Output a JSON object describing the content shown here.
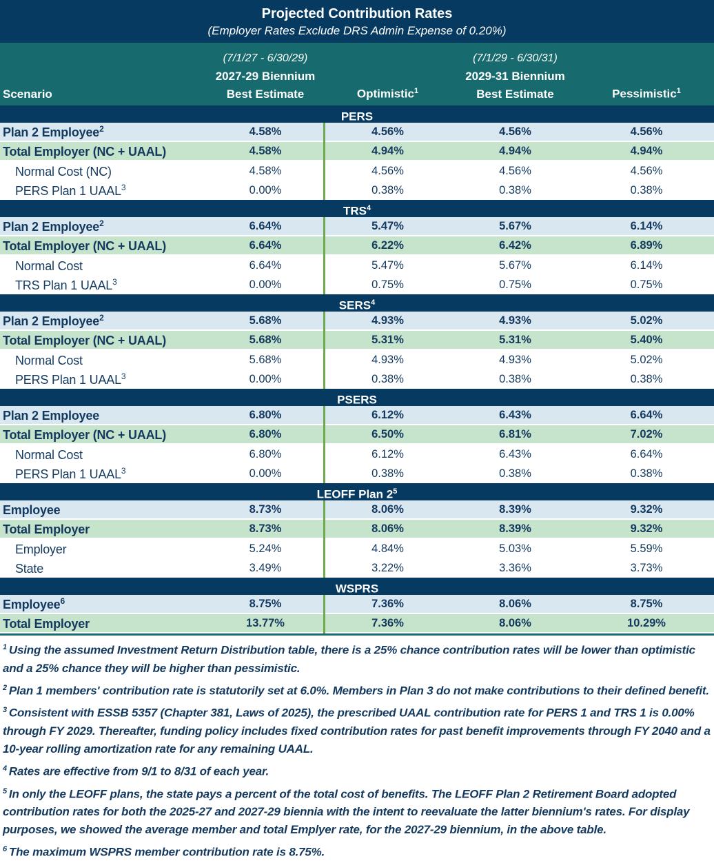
{
  "colors": {
    "navy_band": "#073a61",
    "teal_band": "#176a6d",
    "row_blue": "#d9e7f1",
    "row_green": "#c6e3cb",
    "green_divider": "#70a84e",
    "text_navy": "#14395e"
  },
  "title": {
    "main": "Projected Contribution Rates",
    "subtitle": "(Employer Rates Exclude DRS Admin Expense of 0.20%)"
  },
  "header": {
    "scenario_label": "Scenario",
    "period_1": "(7/1/27 - 6/30/29)",
    "biennium_1": "2027-29 Biennium",
    "best_estimate_1": "Best Estimate",
    "optimistic_label": "Optimistic",
    "optimistic_sup": "1",
    "period_2": "(7/1/29 - 6/30/31)",
    "biennium_2": "2029-31 Biennium",
    "best_estimate_2": "Best Estimate",
    "pessimistic_label": "Pessimistic",
    "pessimistic_sup": "1"
  },
  "sections": [
    {
      "name": "PERS",
      "sup": "",
      "rows": [
        {
          "label": "Plan 2 Employee",
          "sup": "2",
          "style": "employee",
          "values": [
            "4.58%",
            "4.56%",
            "4.56%",
            "4.56%"
          ]
        },
        {
          "label": "Total Employer (NC + UAAL)",
          "sup": "",
          "style": "employer",
          "values": [
            "4.58%",
            "4.94%",
            "4.94%",
            "4.94%"
          ]
        },
        {
          "label": "Normal Cost (NC)",
          "sup": "",
          "style": "sub",
          "values": [
            "4.58%",
            "4.56%",
            "4.56%",
            "4.56%"
          ]
        },
        {
          "label": "PERS Plan 1 UAAL",
          "sup": "3",
          "style": "sub",
          "values": [
            "0.00%",
            "0.38%",
            "0.38%",
            "0.38%"
          ]
        }
      ]
    },
    {
      "name": "TRS",
      "sup": "4",
      "rows": [
        {
          "label": "Plan 2 Employee",
          "sup": "2",
          "style": "employee",
          "values": [
            "6.64%",
            "5.47%",
            "5.67%",
            "6.14%"
          ]
        },
        {
          "label": "Total Employer (NC + UAAL)",
          "sup": "",
          "style": "employer",
          "values": [
            "6.64%",
            "6.22%",
            "6.42%",
            "6.89%"
          ]
        },
        {
          "label": "Normal Cost",
          "sup": "",
          "style": "sub",
          "values": [
            "6.64%",
            "5.47%",
            "5.67%",
            "6.14%"
          ]
        },
        {
          "label": "TRS Plan 1 UAAL",
          "sup": "3",
          "style": "sub",
          "values": [
            "0.00%",
            "0.75%",
            "0.75%",
            "0.75%"
          ]
        }
      ]
    },
    {
      "name": "SERS",
      "sup": "4",
      "rows": [
        {
          "label": "Plan 2 Employee",
          "sup": "2",
          "style": "employee",
          "values": [
            "5.68%",
            "4.93%",
            "4.93%",
            "5.02%"
          ]
        },
        {
          "label": "Total Employer (NC + UAAL)",
          "sup": "",
          "style": "employer",
          "values": [
            "5.68%",
            "5.31%",
            "5.31%",
            "5.40%"
          ]
        },
        {
          "label": "Normal Cost",
          "sup": "",
          "style": "sub",
          "values": [
            "5.68%",
            "4.93%",
            "4.93%",
            "5.02%"
          ]
        },
        {
          "label": "PERS Plan 1 UAAL",
          "sup": "3",
          "style": "sub",
          "values": [
            "0.00%",
            "0.38%",
            "0.38%",
            "0.38%"
          ]
        }
      ]
    },
    {
      "name": "PSERS",
      "sup": "",
      "rows": [
        {
          "label": "Plan 2 Employee",
          "sup": "",
          "style": "employee",
          "values": [
            "6.80%",
            "6.12%",
            "6.43%",
            "6.64%"
          ]
        },
        {
          "label": "Total Employer (NC + UAAL)",
          "sup": "",
          "style": "employer",
          "values": [
            "6.80%",
            "6.50%",
            "6.81%",
            "7.02%"
          ]
        },
        {
          "label": "Normal Cost",
          "sup": "",
          "style": "sub",
          "values": [
            "6.80%",
            "6.12%",
            "6.43%",
            "6.64%"
          ]
        },
        {
          "label": "PERS Plan 1 UAAL",
          "sup": "3",
          "style": "sub",
          "values": [
            "0.00%",
            "0.38%",
            "0.38%",
            "0.38%"
          ]
        }
      ]
    },
    {
      "name": "LEOFF Plan 2",
      "sup": "5",
      "rows": [
        {
          "label": "Employee",
          "sup": "",
          "style": "employee",
          "values": [
            "8.73%",
            "8.06%",
            "8.39%",
            "9.32%"
          ]
        },
        {
          "label": "Total Employer",
          "sup": "",
          "style": "employer",
          "values": [
            "8.73%",
            "8.06%",
            "8.39%",
            "9.32%"
          ]
        },
        {
          "label": "Employer",
          "sup": "",
          "style": "sub",
          "values": [
            "5.24%",
            "4.84%",
            "5.03%",
            "5.59%"
          ]
        },
        {
          "label": "State",
          "sup": "",
          "style": "sub",
          "values": [
            "3.49%",
            "3.22%",
            "3.36%",
            "3.73%"
          ]
        }
      ]
    },
    {
      "name": "WSPRS",
      "sup": "",
      "rows": [
        {
          "label": "Employee",
          "sup": "6",
          "style": "employee",
          "values": [
            "8.75%",
            "7.36%",
            "8.06%",
            "8.75%"
          ]
        },
        {
          "label": "Total Employer",
          "sup": "",
          "style": "employer",
          "values": [
            "13.77%",
            "7.36%",
            "8.06%",
            "10.29%"
          ]
        }
      ]
    }
  ],
  "footnotes": [
    {
      "num": "1",
      "text": "Using the assumed Investment Return Distribution table, there is a 25% chance contribution rates will be lower than optimistic and a 25% chance they will be higher than pessimistic."
    },
    {
      "num": "2",
      "text": "Plan 1 members' contribution rate is statutorily set at 6.0%. Members in Plan 3 do not make contributions to their defined benefit."
    },
    {
      "num": "3",
      "text": "Consistent with ESSB 5357 (Chapter 381, Laws of 2025), the prescribed UAAL contribution rate for PERS 1 and TRS 1 is 0.00% through FY 2029. Thereafter, funding policy includes fixed contribution rates for past benefit improvements through FY 2040  and a 10-year rolling amortization rate for any remaining UAAL."
    },
    {
      "num": "4",
      "text": "Rates are effective from 9/1 to 8/31 of each year."
    },
    {
      "num": "5",
      "text": "In only the LEOFF plans, the state pays a percent of the total cost of benefits. The LEOFF Plan 2 Retirement Board adopted contribution rates for both the 2025-27 and 2027-29 biennia with the intent to reevaluate the latter biennium's rates. For display purposes, we showed the average member and total Emplyer rate, for the 2027-29 biennium, in the above table."
    },
    {
      "num": "6",
      "text": "The maximum WSPRS member contribution rate is 8.75%."
    }
  ]
}
